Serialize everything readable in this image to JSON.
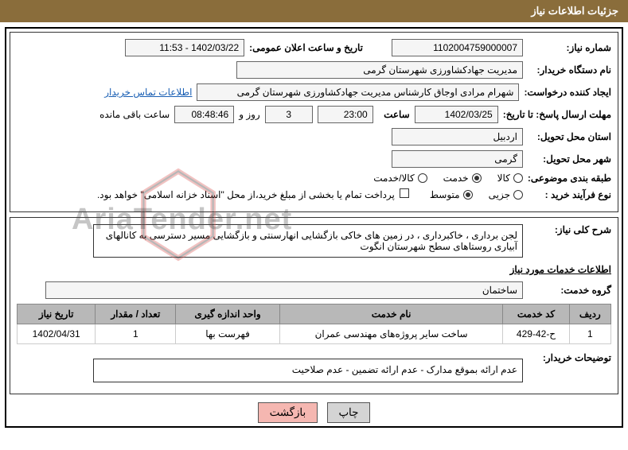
{
  "header": {
    "title": "جزئیات اطلاعات نیاز"
  },
  "fields": {
    "request_no_label": "شماره نیاز:",
    "request_no": "1102004759000007",
    "announce_label": "تاریخ و ساعت اعلان عمومی:",
    "announce_value": "1402/03/22 - 11:53",
    "buyer_org_label": "نام دستگاه خریدار:",
    "buyer_org": "مدیریت جهادکشاورزی شهرستان گرمی",
    "creator_label": "ایجاد کننده درخواست:",
    "creator": "شهرام  مرادی اوجاق کارشناس مدیریت جهادکشاورزی شهرستان گرمی",
    "contact_link": "اطلاعات تماس خریدار",
    "deadline_label": "مهلت ارسال پاسخ: تا تاریخ:",
    "deadline_date": "1402/03/25",
    "time_label": "ساعت",
    "deadline_time": "23:00",
    "days_count": "3",
    "days_suffix": "روز و",
    "countdown": "08:48:46",
    "remaining_suffix": "ساعت باقی مانده",
    "province_label": "استان محل تحویل:",
    "province": "اردبیل",
    "city_label": "شهر محل تحویل:",
    "city": "گرمی",
    "category_label": "طبقه بندی موضوعی:",
    "cat_goods": "کالا",
    "cat_service": "خدمت",
    "cat_both": "کالا/خدمت",
    "purchase_type_label": "نوع فرآیند خرید :",
    "pt_minor": "جزیی",
    "pt_medium": "متوسط",
    "payment_note": "پرداخت تمام یا بخشی از مبلغ خرید،از محل \"اسناد خزانه اسلامی\" خواهد بود.",
    "desc_label": "شرح کلی نیاز:",
    "desc_text": "لجن برداری ، خاکبرداری ، در زمین های خاکی بازگشایی انهارسنتی و بازگشایی مسیر دسترسی به کانالهای آبیاری روستاهای سطح شهرستان انگوت",
    "services_title": "اطلاعات خدمات مورد نیاز",
    "group_label": "گروه خدمت:",
    "group_value": "ساختمان",
    "buyer_notes_label": "توضیحات خریدار:",
    "buyer_notes": "عدم ارائه بموقع مدارک - عدم ارائه تضمین - عدم صلاحیت",
    "btn_print": "چاپ",
    "btn_back": "بازگشت"
  },
  "table": {
    "headers": [
      "ردیف",
      "کد خدمت",
      "نام خدمت",
      "واحد اندازه گیری",
      "تعداد / مقدار",
      "تاریخ نیاز"
    ],
    "rows": [
      [
        "1",
        "ح-42-429",
        "ساخت سایر پروژه‌های مهندسی عمران",
        "فهرست بها",
        "1",
        "1402/04/31"
      ]
    ]
  },
  "colors": {
    "header_bg": "#8a6d3b",
    "header_fg": "#ffffff",
    "th_bg": "#b8b8b8",
    "link": "#1a5fb4",
    "btn_back_bg": "#f5b7b1",
    "wm_red": "#d9534f",
    "wm_text": "#444444"
  },
  "watermark": {
    "text": "AriaTender.net"
  }
}
